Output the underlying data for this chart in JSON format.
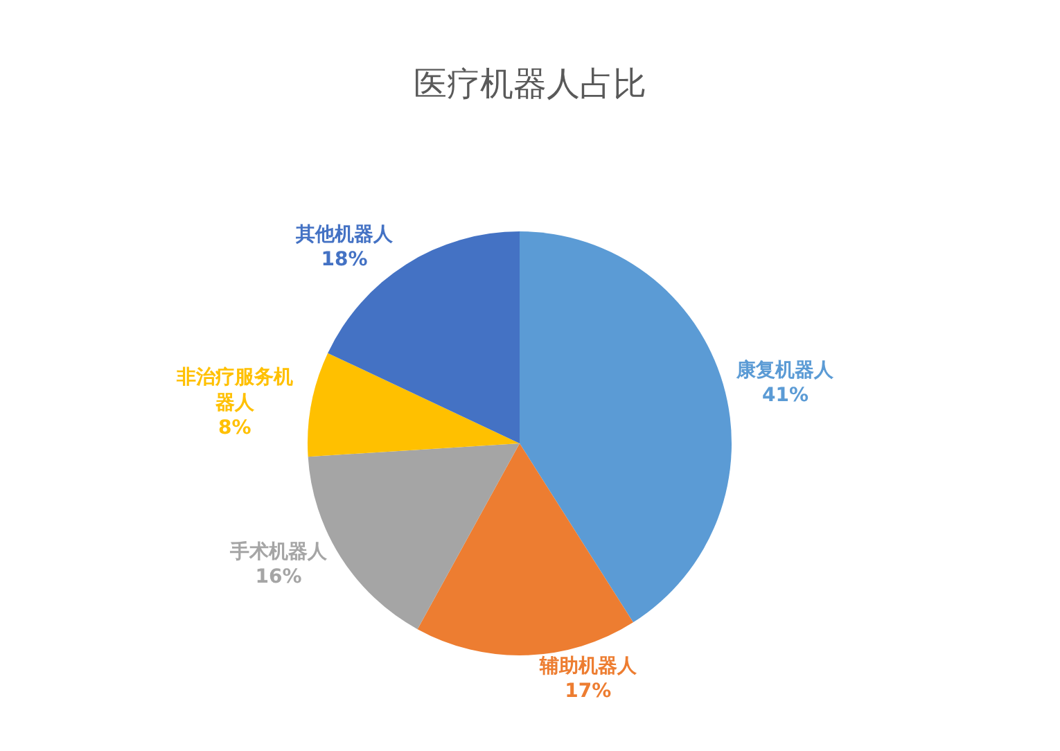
{
  "chart_data": {
    "type": "pie",
    "title": "医疗机器人占比",
    "categories": [
      "康复机器人",
      "辅助机器人",
      "手术机器人",
      "非治疗服务机器人",
      "其他机器人"
    ],
    "values": [
      41,
      17,
      16,
      8,
      18
    ],
    "value_labels": [
      "41%",
      "17%",
      "16%",
      "8%",
      "18%"
    ],
    "colors": [
      "#5b9bd5",
      "#ed7d31",
      "#a5a5a5",
      "#ffc000",
      "#4472c4"
    ],
    "legend": false
  }
}
